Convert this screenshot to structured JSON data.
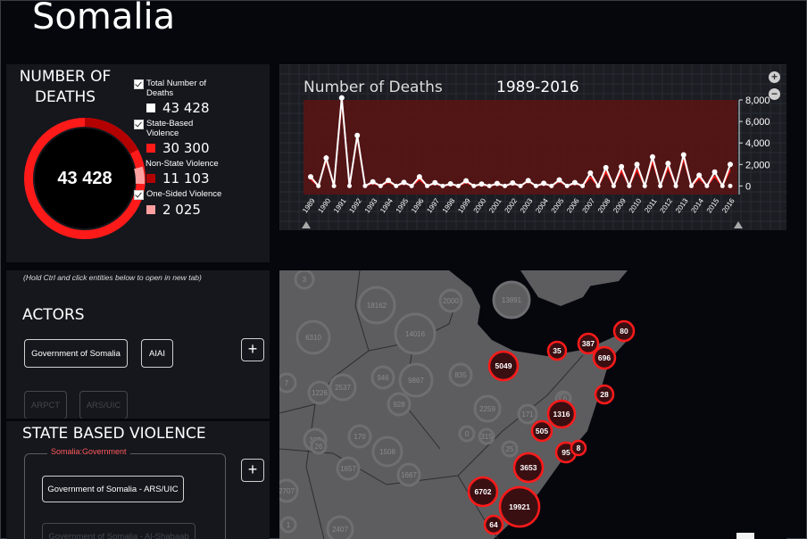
{
  "page": {
    "title": "Somalia"
  },
  "deaths": {
    "title_line1": "NUMBER OF",
    "title_line2": "DEATHS",
    "total": "43 428",
    "legend": [
      {
        "label": "Total Number of Deaths",
        "value": "43 428",
        "color": "#ffffff",
        "checkbox": true
      },
      {
        "label": "State-Based Violence",
        "value": "30 300",
        "color": "#ff1a1a",
        "checkbox": true
      },
      {
        "label": "Non-State Violence",
        "value": "11 103",
        "color": "#b30000",
        "checkbox": false
      },
      {
        "label": "One-Sided Violence",
        "value": "2 025",
        "color": "#ff9f9f",
        "checkbox": true
      }
    ]
  },
  "timeline": {
    "title": "Number of Deaths",
    "range": "1989-2016",
    "zoom_in": "+",
    "zoom_out": "−"
  },
  "chart_data": {
    "type": "line",
    "x": [
      "1989",
      "1990",
      "1991",
      "1992",
      "1993",
      "1994",
      "1995",
      "1996",
      "1997",
      "1998",
      "1999",
      "2000",
      "2001",
      "2002",
      "2003",
      "2004",
      "2005",
      "2006",
      "2007",
      "2008",
      "2009",
      "2010",
      "2011",
      "2012",
      "2013",
      "2014",
      "2015",
      "2016"
    ],
    "series": [
      {
        "values": [
          850,
          2600,
          8200,
          4700,
          380,
          520,
          330,
          850,
          300,
          200,
          480,
          180,
          230,
          280,
          500,
          250,
          560,
          310,
          1200,
          1700,
          1800,
          2000,
          2700,
          2100,
          2900,
          1000,
          1300,
          2000
        ],
        "color": "#ffffff"
      },
      {
        "values": [
          600,
          2400,
          7900,
          4500,
          250,
          360,
          230,
          600,
          200,
          120,
          320,
          100,
          140,
          190,
          400,
          160,
          410,
          200,
          800,
          1300,
          1400,
          1500,
          2300,
          1700,
          2500,
          700,
          900,
          1500
        ],
        "color": "#ff1a1a"
      }
    ],
    "ylim": [
      -300,
      8000
    ],
    "yticks": [
      "0",
      "2,000",
      "4,000",
      "6,000",
      "8,000"
    ],
    "xlabel": "",
    "ylabel": ""
  },
  "actors": {
    "hint": "(Hold Ctrl and click entities below to open in new tab)",
    "title": "ACTORS",
    "items": [
      "Government of Somalia",
      "AIAI",
      "ARPCT",
      "ARS/UIC"
    ],
    "add_label": "+"
  },
  "state_based": {
    "title": "STATE BASED VIOLENCE",
    "group_label": "Somalia:Government",
    "items": [
      "Government of Somalia - ARS/UIC",
      "Government of Somalia - Al-Shabaab"
    ],
    "add_label": "+"
  },
  "map": {
    "clusters_red": [
      "80",
      "35",
      "387",
      "696",
      "5049",
      "28",
      "1316",
      "505",
      "95",
      "8",
      "3653",
      "6702",
      "19921",
      "64"
    ],
    "clusters_grey": [
      "3",
      "18162",
      "2000",
      "13891",
      "6310",
      "14016",
      "7",
      "1226",
      "2537",
      "946",
      "9867",
      "835",
      "2259",
      "171",
      "6",
      "0",
      "315",
      "25",
      "335",
      "170",
      "1508",
      "26",
      "1657",
      "1667",
      "2707",
      "2407",
      "928",
      "6",
      "1"
    ]
  }
}
